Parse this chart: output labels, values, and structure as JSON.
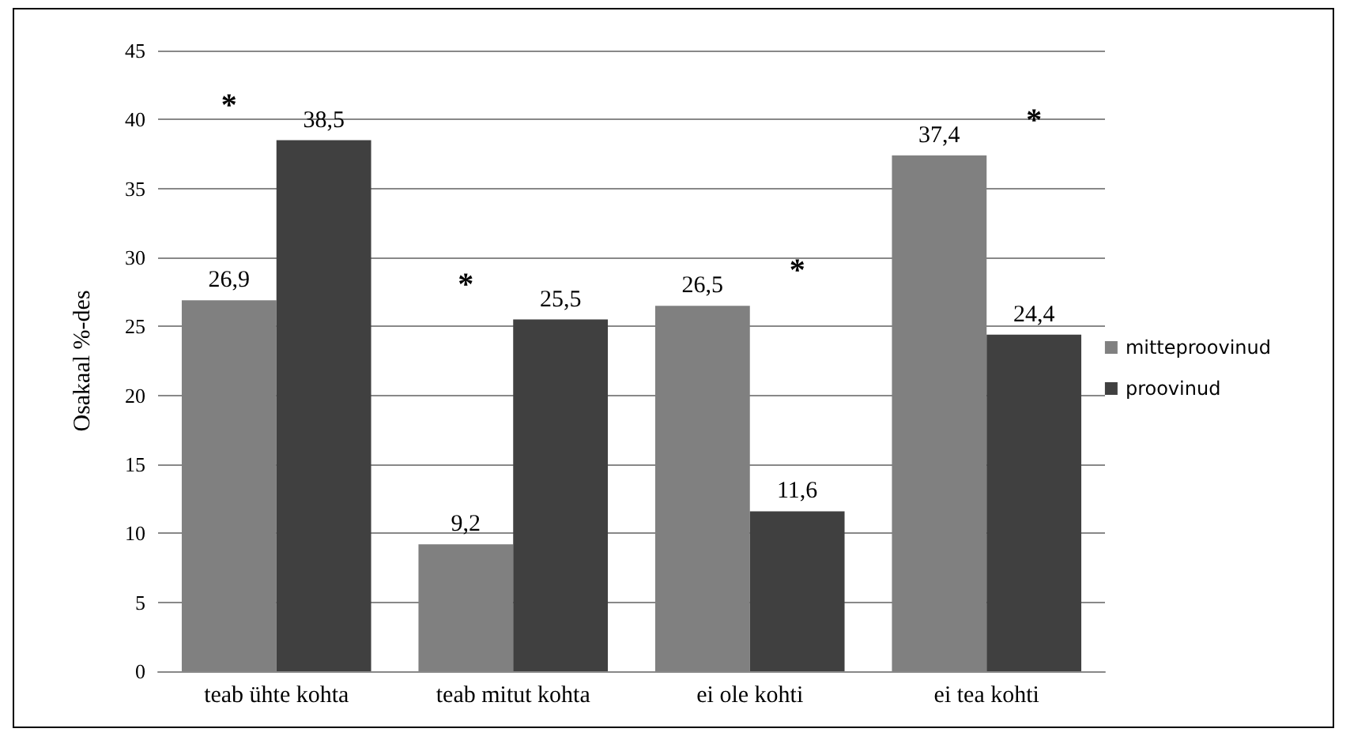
{
  "chart_data": {
    "type": "bar",
    "ylabel": "Osakaal %-des",
    "categories": [
      "teab ühte kohta",
      "teab mitut kohta",
      "ei ole kohti",
      "ei tea kohti"
    ],
    "series": [
      {
        "name": "mitteproovinud",
        "color": "#808080",
        "values": [
          26.9,
          9.2,
          26.5,
          37.4
        ],
        "value_labels": [
          "26,9",
          "9,2",
          "26,5",
          "37,4"
        ]
      },
      {
        "name": "proovinud",
        "color": "#404040",
        "values": [
          38.5,
          25.5,
          11.6,
          24.4
        ],
        "value_labels": [
          "38,5",
          "25,5",
          "11,6",
          "24,4"
        ]
      }
    ],
    "ylim": [
      0,
      45
    ],
    "yticks": [
      0,
      5,
      10,
      15,
      20,
      25,
      30,
      35,
      40,
      45
    ],
    "grid": "y",
    "legend": "right",
    "annotations": [
      "*",
      "*",
      "*",
      "*"
    ]
  }
}
